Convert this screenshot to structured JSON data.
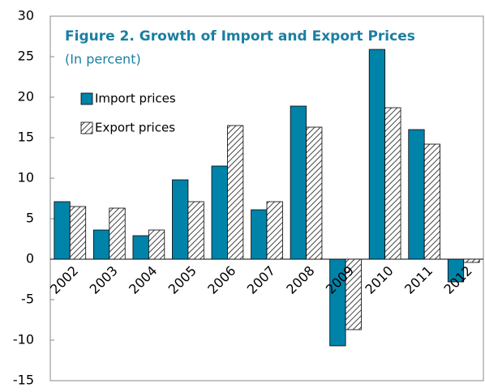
{
  "chart_data": {
    "type": "bar",
    "title": "Figure 2. Growth  of Import and Export Prices",
    "subtitle": "(In percent)",
    "categories": [
      "2002",
      "2003",
      "2004",
      "2005",
      "2006",
      "2007",
      "2008",
      "2009",
      "2010",
      "2011",
      "2012"
    ],
    "series": [
      {
        "name": "Import prices",
        "color": "#0083a9",
        "values": [
          7.1,
          3.6,
          2.9,
          9.8,
          11.5,
          6.1,
          18.9,
          -10.7,
          25.9,
          16.0,
          -2.8
        ]
      },
      {
        "name": "Export prices",
        "color": "#444444",
        "pattern": "hatch",
        "values": [
          6.5,
          6.3,
          3.6,
          7.1,
          16.5,
          7.1,
          16.3,
          -8.7,
          18.7,
          14.2,
          -0.4
        ]
      }
    ],
    "ylim": [
      -15,
      30
    ],
    "yticks": [
      -15,
      -10,
      -5,
      0,
      5,
      10,
      15,
      20,
      25,
      30
    ],
    "grid": false
  }
}
